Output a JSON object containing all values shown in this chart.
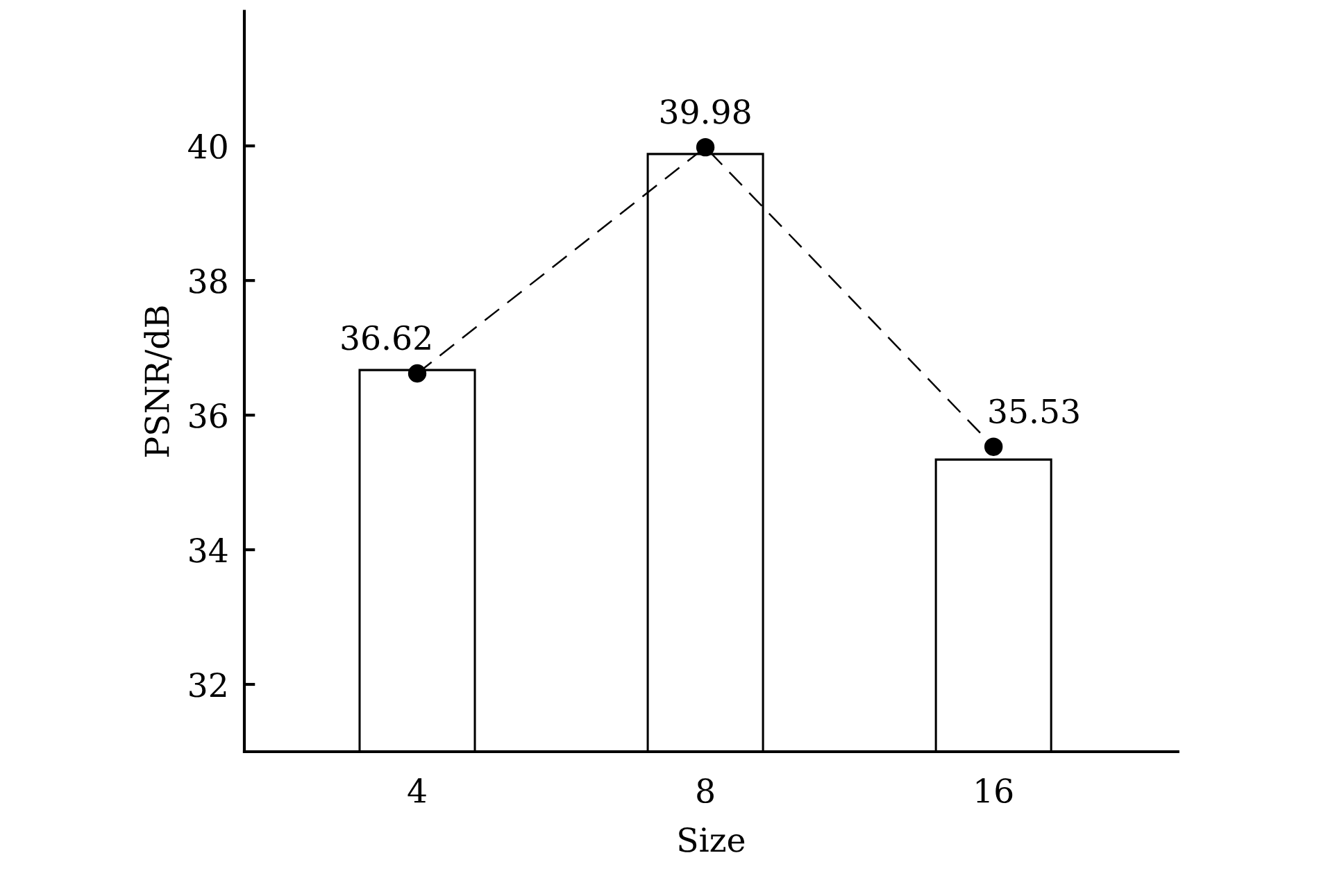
{
  "chart_data": {
    "type": "bar",
    "xlabel": "Size",
    "ylabel": "PSNR/dB",
    "categories": [
      "4",
      "8",
      "16"
    ],
    "ylim": [
      31,
      42
    ],
    "yticks": [
      32,
      34,
      36,
      38,
      40
    ],
    "series": [
      {
        "color": "#ffffff",
        "values": [
          36.67,
          39.88,
          35.34
        ]
      },
      {
        "type": "line",
        "color": "#000000",
        "values": [
          36.62,
          39.98,
          35.53
        ],
        "marker": "circle",
        "line_style": "dashed",
        "data_labels": true
      }
    ]
  }
}
